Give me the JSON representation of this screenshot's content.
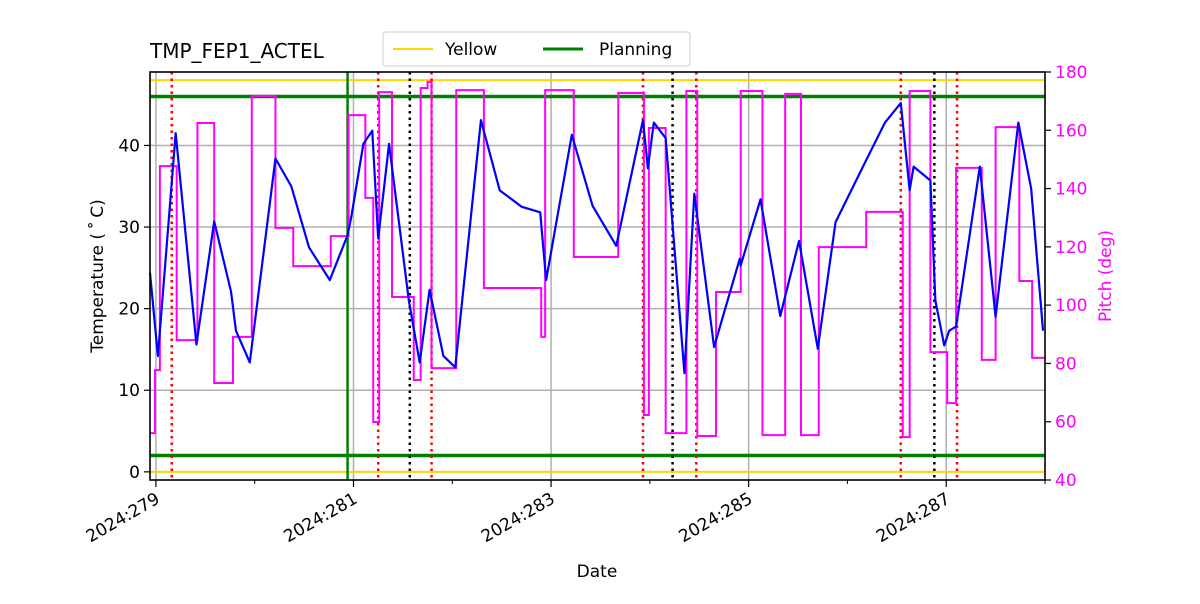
{
  "chart_data": {
    "type": "line",
    "title": "TMP_FEP1_ACTEL",
    "xlabel": "Date",
    "ylabel": "Temperature ($^\\circ$C)",
    "ylabel_display": "Temperature ( ˚ C)",
    "y2label": "Pitch (deg)",
    "xlim": [
      278.94,
      288.0
    ],
    "ylim": [
      -1,
      49
    ],
    "y2lim": [
      40,
      180
    ],
    "x_major_ticks": [
      279,
      281,
      283,
      285,
      287
    ],
    "x_minor_ticks": [
      280,
      282,
      284,
      286,
      288
    ],
    "x_tick_labels": [
      "2024:279",
      "2024:281",
      "2024:283",
      "2024:285",
      "2024:287"
    ],
    "y_ticks": [
      0,
      10,
      20,
      30,
      40
    ],
    "y2_ticks": [
      40,
      60,
      80,
      100,
      120,
      140,
      160,
      180
    ],
    "grid": true,
    "legend": {
      "placement": "top-center",
      "entries": [
        {
          "label": "Yellow",
          "color": "#ffd700"
        },
        {
          "label": "Planning",
          "color": "#008000"
        }
      ]
    },
    "limit_lines": [
      {
        "name": "Yellow",
        "values": [
          48,
          0
        ],
        "color": "#ffd700"
      },
      {
        "name": "Planning",
        "values": [
          46,
          2
        ],
        "color": "#008000"
      }
    ],
    "vertical_lines": {
      "green_solid": [
        280.94
      ],
      "red_dotted": [
        279.16,
        281.25,
        281.79,
        283.93,
        284.47,
        286.54,
        287.11
      ],
      "black_dotted": [
        281.57,
        284.23,
        286.88
      ]
    },
    "series": [
      {
        "axis": "left",
        "color": "#0000ff",
        "x": [
          278.94,
          279.02,
          279.2,
          279.41,
          279.59,
          279.76,
          279.81,
          279.95,
          280.21,
          280.37,
          280.55,
          280.76,
          280.94,
          280.98,
          281.1,
          281.19,
          281.25,
          281.36,
          281.56,
          281.67,
          281.77,
          281.91,
          282.03,
          282.29,
          282.48,
          282.7,
          282.89,
          282.95,
          283.21,
          283.42,
          283.66,
          283.93,
          283.98,
          284.04,
          284.16,
          284.35,
          284.45,
          284.65,
          284.91,
          284.92,
          285.12,
          285.32,
          285.51,
          285.7,
          285.88,
          286.19,
          286.38,
          286.54,
          286.63,
          286.67,
          286.84,
          286.89,
          286.98,
          287.03,
          287.1,
          287.34,
          287.5,
          287.73,
          287.86,
          287.98
        ],
        "y": [
          24.4,
          14.2,
          41.5,
          15.6,
          30.7,
          22.1,
          17.3,
          13.4,
          38.4,
          35.0,
          27.5,
          23.5,
          29.0,
          31.4,
          40.2,
          41.8,
          28.6,
          40.2,
          21.0,
          13.4,
          22.3,
          14.2,
          12.8,
          43.1,
          34.5,
          32.5,
          31.8,
          23.5,
          41.3,
          32.6,
          27.7,
          43.1,
          37.2,
          42.8,
          40.9,
          12.1,
          34.1,
          15.3,
          26.1,
          25.3,
          33.4,
          19.1,
          28.3,
          15.1,
          30.6,
          38.2,
          42.8,
          45.2,
          34.5,
          37.4,
          35.7,
          21.0,
          15.5,
          17.3,
          17.8,
          37.4,
          19.0,
          42.8,
          34.7,
          17.3
        ]
      },
      {
        "axis": "right",
        "color": "#ff00ff",
        "step": "post",
        "x": [
          278.94,
          278.99,
          279.04,
          279.21,
          279.42,
          279.59,
          279.78,
          279.97,
          280.21,
          280.39,
          280.77,
          280.95,
          281.12,
          281.2,
          281.26,
          281.39,
          281.61,
          281.68,
          281.75,
          281.79,
          282.04,
          282.32,
          282.9,
          282.94,
          283.23,
          283.68,
          283.94,
          283.99,
          284.16,
          284.37,
          284.48,
          284.67,
          284.92,
          285.14,
          285.37,
          285.53,
          285.71,
          286.19,
          286.56,
          286.63,
          286.84,
          287.01,
          287.1,
          287.36,
          287.5,
          287.74,
          287.87,
          288.0
        ],
        "y": [
          56.1,
          77.7,
          147.7,
          88.0,
          162.5,
          73.3,
          89.1,
          171.8,
          126.5,
          113.4,
          123.7,
          165.2,
          136.8,
          59.9,
          173.1,
          102.8,
          74.3,
          174.5,
          176.6,
          78.4,
          173.8,
          105.9,
          89.1,
          173.8,
          116.5,
          172.8,
          62.3,
          160.8,
          56.1,
          173.5,
          55.1,
          104.5,
          173.5,
          55.4,
          172.5,
          55.4,
          119.9,
          132.0,
          54.7,
          173.5,
          83.9,
          66.4,
          147.1,
          81.2,
          161.1,
          108.3,
          81.9,
          81.9
        ]
      }
    ]
  }
}
